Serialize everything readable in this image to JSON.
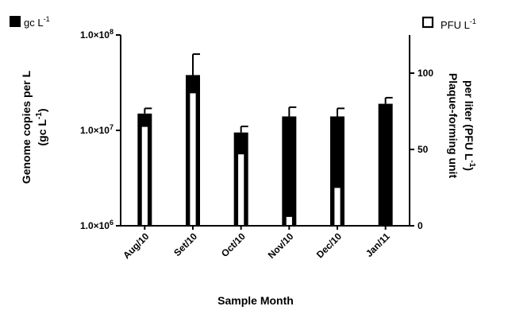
{
  "chart_data": {
    "type": "bar",
    "categories": [
      "Aug/10",
      "Set/10",
      "Oct/10",
      "Nov/10",
      "Dec/10",
      "Jan/11"
    ],
    "series": [
      {
        "name": "gc L-1",
        "axis": "left",
        "color": "#000000",
        "values": [
          15000000,
          38000000,
          9500000,
          14000000,
          14000000,
          19000000
        ],
        "error_upper": [
          17000000,
          63000000,
          11000000,
          17500000,
          17000000,
          22000000
        ]
      },
      {
        "name": "PFU L-1",
        "axis": "right",
        "color": "#ffffff",
        "values": [
          65,
          87,
          47,
          6,
          25,
          0
        ]
      }
    ],
    "xlabel": "Sample Month",
    "ylabel_left_lines": [
      "Genome copies per L",
      "(gc L",
      "-1",
      ")"
    ],
    "ylabel_right_lines": [
      "Plaque-forming unit",
      "per liter (PFU L",
      "-1",
      ")"
    ],
    "left_axis": {
      "scale": "log",
      "ylim": [
        1000000,
        100000000
      ],
      "tick_values": [
        1000000,
        10000000,
        100000000
      ],
      "tick_labels": [
        {
          "base": "1.0×10",
          "exp": "6"
        },
        {
          "base": "1.0×10",
          "exp": "7"
        },
        {
          "base": "1.0×10",
          "exp": "8"
        }
      ]
    },
    "right_axis": {
      "scale": "linear",
      "ylim": [
        0,
        125
      ],
      "tick_values": [
        0,
        50,
        100
      ],
      "tick_labels": [
        "0",
        "50",
        "100"
      ]
    },
    "legend": {
      "left_entry": {
        "text": "gc L",
        "sup": "-1"
      },
      "right_entry": {
        "text": "PFU L",
        "sup": "-1"
      }
    }
  }
}
